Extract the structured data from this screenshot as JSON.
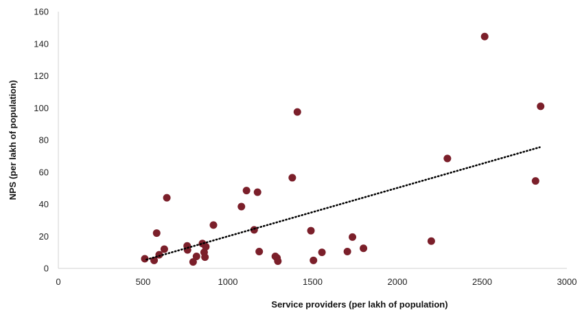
{
  "chart_data": {
    "type": "scatter",
    "title": "",
    "xlabel": "Service providers (per lakh of population)",
    "ylabel": "NPS (per lakh of population)",
    "xlim": [
      0,
      3000
    ],
    "ylim": [
      0,
      160
    ],
    "x_ticks": [
      0,
      500,
      1000,
      1500,
      2000,
      2500,
      3000
    ],
    "y_ticks": [
      0,
      20,
      40,
      60,
      80,
      100,
      120,
      140,
      160
    ],
    "x_tick_labels": [
      "0",
      "500",
      "1000",
      "1500",
      "2000",
      "2500",
      "3000"
    ],
    "y_tick_labels": [
      "0",
      "20",
      "40",
      "60",
      "80",
      "100",
      "120",
      "140",
      "160"
    ],
    "grid": false,
    "legend": "none",
    "marker_color": "#7b1f2a",
    "trendline": {
      "type": "linear",
      "style": "dotted",
      "color": "#000000",
      "x_start": 520,
      "y_start": 5.5,
      "x_end": 2840,
      "y_end": 75.5
    },
    "points": [
      {
        "x": 510,
        "y": 6
      },
      {
        "x": 565,
        "y": 5
      },
      {
        "x": 580,
        "y": 22
      },
      {
        "x": 595,
        "y": 8.5
      },
      {
        "x": 625,
        "y": 12
      },
      {
        "x": 640,
        "y": 44
      },
      {
        "x": 760,
        "y": 14
      },
      {
        "x": 762,
        "y": 11.5
      },
      {
        "x": 795,
        "y": 4
      },
      {
        "x": 815,
        "y": 7.5
      },
      {
        "x": 850,
        "y": 15.5
      },
      {
        "x": 860,
        "y": 10
      },
      {
        "x": 865,
        "y": 7
      },
      {
        "x": 870,
        "y": 13.5
      },
      {
        "x": 915,
        "y": 27
      },
      {
        "x": 1080,
        "y": 38.5
      },
      {
        "x": 1110,
        "y": 48.5
      },
      {
        "x": 1155,
        "y": 24
      },
      {
        "x": 1175,
        "y": 47.5
      },
      {
        "x": 1185,
        "y": 10.5
      },
      {
        "x": 1280,
        "y": 7.5
      },
      {
        "x": 1290,
        "y": 6.5
      },
      {
        "x": 1295,
        "y": 4.5
      },
      {
        "x": 1380,
        "y": 56.5
      },
      {
        "x": 1410,
        "y": 97.5
      },
      {
        "x": 1490,
        "y": 23.5
      },
      {
        "x": 1505,
        "y": 5
      },
      {
        "x": 1555,
        "y": 10
      },
      {
        "x": 1705,
        "y": 10.5
      },
      {
        "x": 1735,
        "y": 19.5
      },
      {
        "x": 1800,
        "y": 12.5
      },
      {
        "x": 2200,
        "y": 17
      },
      {
        "x": 2295,
        "y": 68.5
      },
      {
        "x": 2515,
        "y": 144.5
      },
      {
        "x": 2815,
        "y": 54.5
      },
      {
        "x": 2845,
        "y": 101
      }
    ]
  }
}
